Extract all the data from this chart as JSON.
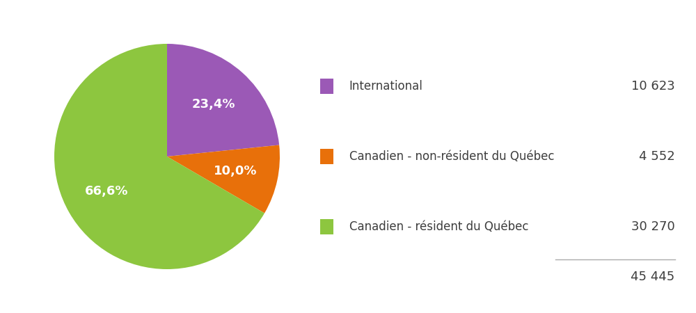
{
  "labels": [
    "International",
    "Canadien - non-résident du Québec",
    "Canadien - résident du Québec"
  ],
  "values": [
    10623,
    4552,
    30270
  ],
  "percentages": [
    "23,4%",
    "10,0%",
    "66,6%"
  ],
  "colors": [
    "#9B59B6",
    "#E8700A",
    "#8DC63F"
  ],
  "counts": [
    "10 623",
    "4 552",
    "30 270"
  ],
  "total": "45 445",
  "legend_colors": [
    "#9B59B6",
    "#E8700A",
    "#8DC63F"
  ],
  "text_color": "#3D3D3D",
  "background_color": "#FFFFFF",
  "startangle": 90,
  "wedge_label_fontsize": 13,
  "legend_fontsize": 12,
  "count_fontsize": 13
}
